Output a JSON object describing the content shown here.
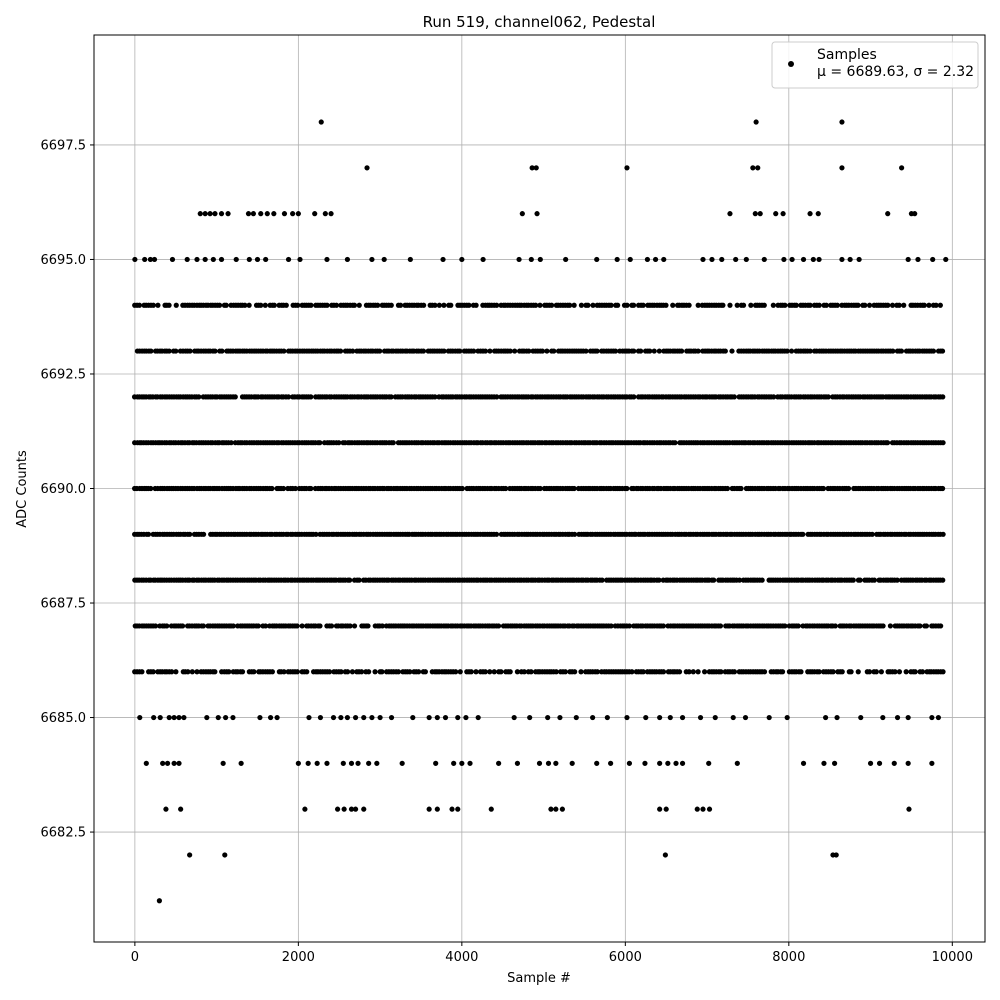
{
  "chart_data": {
    "type": "scatter",
    "title": "Run 519, channel062, Pedestal",
    "xlabel": "Sample #",
    "ylabel": "ADC Counts",
    "xlim": [
      -500,
      10400
    ],
    "ylim": [
      6680.1,
      6699.9
    ],
    "xticks": [
      0,
      2000,
      4000,
      6000,
      8000,
      10000
    ],
    "xtick_labels": [
      "0",
      "2000",
      "4000",
      "6000",
      "8000",
      "10000"
    ],
    "yticks": [
      6682.5,
      6685.0,
      6687.5,
      6690.0,
      6692.5,
      6695.0,
      6697.5
    ],
    "ytick_labels": [
      "6682.5",
      "6685.0",
      "6687.5",
      "6690.0",
      "6692.5",
      "6695.0",
      "6697.5"
    ],
    "grid": true,
    "legend_position": "top-right",
    "series": [
      {
        "name": "Samples",
        "legend_stats": "μ = 6689.63, σ = 2.32",
        "color": "#000000",
        "x_range": [
          0,
          9910
        ],
        "levels": [
          6682,
          6683,
          6684,
          6685,
          6686,
          6687,
          6688,
          6689,
          6690,
          6691,
          6692,
          6693,
          6694,
          6695,
          6696,
          6697,
          6698
        ],
        "dense_levels": [
          6686,
          6687,
          6688,
          6689,
          6690,
          6691,
          6692,
          6693,
          6694
        ],
        "points": [
          [
            300,
            6681
          ],
          [
            670,
            6682
          ],
          [
            1100,
            6682
          ],
          [
            6490,
            6682
          ],
          [
            8540,
            6682
          ],
          [
            8580,
            6682
          ],
          [
            380,
            6683
          ],
          [
            560,
            6683
          ],
          [
            2080,
            6683
          ],
          [
            2480,
            6683
          ],
          [
            2560,
            6683
          ],
          [
            2650,
            6683
          ],
          [
            2700,
            6683
          ],
          [
            2800,
            6683
          ],
          [
            3600,
            6683
          ],
          [
            3700,
            6683
          ],
          [
            3880,
            6683
          ],
          [
            3950,
            6683
          ],
          [
            4360,
            6683
          ],
          [
            5090,
            6683
          ],
          [
            5150,
            6683
          ],
          [
            5230,
            6683
          ],
          [
            6420,
            6683
          ],
          [
            6500,
            6683
          ],
          [
            6880,
            6683
          ],
          [
            6950,
            6683
          ],
          [
            7030,
            6683
          ],
          [
            9470,
            6683
          ],
          [
            140,
            6684
          ],
          [
            340,
            6684
          ],
          [
            400,
            6684
          ],
          [
            480,
            6684
          ],
          [
            540,
            6684
          ],
          [
            1080,
            6684
          ],
          [
            1300,
            6684
          ],
          [
            2000,
            6684
          ],
          [
            2120,
            6684
          ],
          [
            2230,
            6684
          ],
          [
            2350,
            6684
          ],
          [
            2550,
            6684
          ],
          [
            2650,
            6684
          ],
          [
            2730,
            6684
          ],
          [
            2860,
            6684
          ],
          [
            2960,
            6684
          ],
          [
            3270,
            6684
          ],
          [
            3680,
            6684
          ],
          [
            3900,
            6684
          ],
          [
            4000,
            6684
          ],
          [
            4100,
            6684
          ],
          [
            4450,
            6684
          ],
          [
            4680,
            6684
          ],
          [
            4950,
            6684
          ],
          [
            5060,
            6684
          ],
          [
            5150,
            6684
          ],
          [
            5350,
            6684
          ],
          [
            5650,
            6684
          ],
          [
            5820,
            6684
          ],
          [
            6050,
            6684
          ],
          [
            6240,
            6684
          ],
          [
            6420,
            6684
          ],
          [
            6520,
            6684
          ],
          [
            6620,
            6684
          ],
          [
            6700,
            6684
          ],
          [
            7020,
            6684
          ],
          [
            7370,
            6684
          ],
          [
            8180,
            6684
          ],
          [
            8430,
            6684
          ],
          [
            8560,
            6684
          ],
          [
            9000,
            6684
          ],
          [
            9110,
            6684
          ],
          [
            9290,
            6684
          ],
          [
            9460,
            6684
          ],
          [
            9750,
            6684
          ],
          [
            60,
            6685
          ],
          [
            230,
            6685
          ],
          [
            310,
            6685
          ],
          [
            420,
            6685
          ],
          [
            480,
            6685
          ],
          [
            540,
            6685
          ],
          [
            600,
            6685
          ],
          [
            880,
            6685
          ],
          [
            1020,
            6685
          ],
          [
            1110,
            6685
          ],
          [
            1200,
            6685
          ],
          [
            1530,
            6685
          ],
          [
            1660,
            6685
          ],
          [
            1740,
            6685
          ],
          [
            2130,
            6685
          ],
          [
            2270,
            6685
          ],
          [
            2430,
            6685
          ],
          [
            2520,
            6685
          ],
          [
            2600,
            6685
          ],
          [
            2700,
            6685
          ],
          [
            2800,
            6685
          ],
          [
            2900,
            6685
          ],
          [
            3000,
            6685
          ],
          [
            3140,
            6685
          ],
          [
            3400,
            6685
          ],
          [
            3600,
            6685
          ],
          [
            3700,
            6685
          ],
          [
            3800,
            6685
          ],
          [
            3950,
            6685
          ],
          [
            4050,
            6685
          ],
          [
            4200,
            6685
          ],
          [
            4640,
            6685
          ],
          [
            4830,
            6685
          ],
          [
            5050,
            6685
          ],
          [
            5200,
            6685
          ],
          [
            5400,
            6685
          ],
          [
            5600,
            6685
          ],
          [
            5780,
            6685
          ],
          [
            6020,
            6685
          ],
          [
            6250,
            6685
          ],
          [
            6420,
            6685
          ],
          [
            6550,
            6685
          ],
          [
            6700,
            6685
          ],
          [
            6920,
            6685
          ],
          [
            7100,
            6685
          ],
          [
            7320,
            6685
          ],
          [
            7470,
            6685
          ],
          [
            7760,
            6685
          ],
          [
            7980,
            6685
          ],
          [
            8450,
            6685
          ],
          [
            8590,
            6685
          ],
          [
            8880,
            6685
          ],
          [
            9150,
            6685
          ],
          [
            9330,
            6685
          ],
          [
            9460,
            6685
          ],
          [
            9750,
            6685
          ],
          [
            9830,
            6685
          ],
          [
            2280,
            6698
          ],
          [
            7600,
            6698
          ],
          [
            8650,
            6698
          ],
          [
            2840,
            6697
          ],
          [
            4860,
            6697
          ],
          [
            4910,
            6697
          ],
          [
            6020,
            6697
          ],
          [
            7560,
            6697
          ],
          [
            7620,
            6697
          ],
          [
            8650,
            6697
          ],
          [
            9380,
            6697
          ],
          [
            800,
            6696
          ],
          [
            860,
            6696
          ],
          [
            920,
            6696
          ],
          [
            980,
            6696
          ],
          [
            1060,
            6696
          ],
          [
            1140,
            6696
          ],
          [
            1390,
            6696
          ],
          [
            1450,
            6696
          ],
          [
            1540,
            6696
          ],
          [
            1620,
            6696
          ],
          [
            1700,
            6696
          ],
          [
            1830,
            6696
          ],
          [
            1930,
            6696
          ],
          [
            2000,
            6696
          ],
          [
            2200,
            6696
          ],
          [
            2330,
            6696
          ],
          [
            2400,
            6696
          ],
          [
            4740,
            6696
          ],
          [
            4920,
            6696
          ],
          [
            7280,
            6696
          ],
          [
            7590,
            6696
          ],
          [
            7650,
            6696
          ],
          [
            7840,
            6696
          ],
          [
            7930,
            6696
          ],
          [
            8260,
            6696
          ],
          [
            8360,
            6696
          ],
          [
            9210,
            6696
          ],
          [
            9500,
            6696
          ],
          [
            9540,
            6696
          ],
          [
            0,
            6695
          ],
          [
            120,
            6695
          ],
          [
            190,
            6695
          ],
          [
            240,
            6695
          ],
          [
            460,
            6695
          ],
          [
            640,
            6695
          ],
          [
            760,
            6695
          ],
          [
            860,
            6695
          ],
          [
            960,
            6695
          ],
          [
            1060,
            6695
          ],
          [
            1240,
            6695
          ],
          [
            1400,
            6695
          ],
          [
            1500,
            6695
          ],
          [
            1600,
            6695
          ],
          [
            1880,
            6695
          ],
          [
            2020,
            6695
          ],
          [
            2350,
            6695
          ],
          [
            2600,
            6695
          ],
          [
            2900,
            6695
          ],
          [
            3050,
            6695
          ],
          [
            3370,
            6695
          ],
          [
            3770,
            6695
          ],
          [
            4000,
            6695
          ],
          [
            4260,
            6695
          ],
          [
            4700,
            6695
          ],
          [
            4850,
            6695
          ],
          [
            4960,
            6695
          ],
          [
            5270,
            6695
          ],
          [
            5650,
            6695
          ],
          [
            5900,
            6695
          ],
          [
            6060,
            6695
          ],
          [
            6270,
            6695
          ],
          [
            6370,
            6695
          ],
          [
            6470,
            6695
          ],
          [
            6950,
            6695
          ],
          [
            7060,
            6695
          ],
          [
            7180,
            6695
          ],
          [
            7350,
            6695
          ],
          [
            7480,
            6695
          ],
          [
            7700,
            6695
          ],
          [
            7940,
            6695
          ],
          [
            8040,
            6695
          ],
          [
            8180,
            6695
          ],
          [
            8300,
            6695
          ],
          [
            8370,
            6695
          ],
          [
            8650,
            6695
          ],
          [
            8750,
            6695
          ],
          [
            8860,
            6695
          ],
          [
            9460,
            6695
          ],
          [
            9580,
            6695
          ],
          [
            9760,
            6695
          ],
          [
            9920,
            6695
          ]
        ]
      }
    ]
  }
}
